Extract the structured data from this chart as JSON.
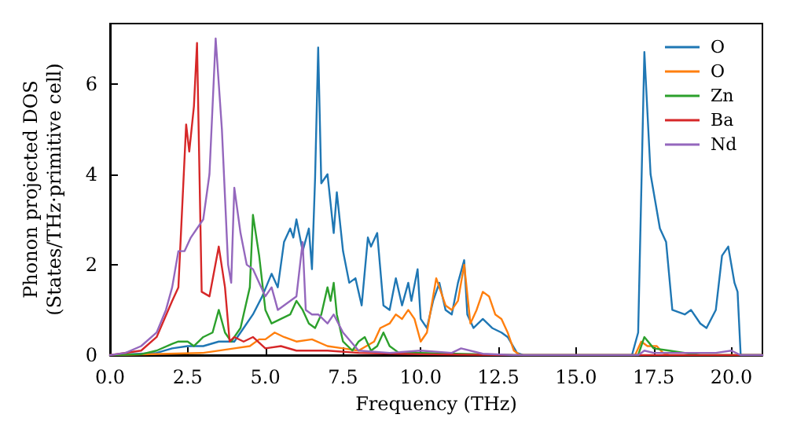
{
  "chart_data": {
    "type": "line",
    "xlabel": "Frequency (THz)",
    "ylabel": "Phonon projected DOS\n(States/THz·primitive cell)",
    "xlim": [
      0,
      21
    ],
    "ylim": [
      0,
      7.33
    ],
    "xticks": [
      {
        "value": 0,
        "label": "0.0"
      },
      {
        "value": 2.5,
        "label": "2.5"
      },
      {
        "value": 5,
        "label": "5.0"
      },
      {
        "value": 7.5,
        "label": "7.5"
      },
      {
        "value": 10,
        "label": "10.0"
      },
      {
        "value": 12.5,
        "label": "12.5"
      },
      {
        "value": 15,
        "label": "15.0"
      },
      {
        "value": 17.5,
        "label": "17.5"
      },
      {
        "value": 20,
        "label": "20.0"
      }
    ],
    "yticks": [
      0,
      2,
      4,
      6
    ],
    "grid": false,
    "legend": "top right",
    "marker": "none",
    "line_style": "solid",
    "series": [
      {
        "name": "O",
        "color": "#1f77b4",
        "x": [
          0,
          1.5,
          2.0,
          2.5,
          3.0,
          3.5,
          4.0,
          4.3,
          4.6,
          4.9,
          5.2,
          5.4,
          5.6,
          5.8,
          5.9,
          6.0,
          6.2,
          6.4,
          6.5,
          6.6,
          6.7,
          6.8,
          7.0,
          7.2,
          7.3,
          7.5,
          7.7,
          7.9,
          8.1,
          8.3,
          8.4,
          8.6,
          8.8,
          9.0,
          9.2,
          9.4,
          9.6,
          9.7,
          9.9,
          10.0,
          10.2,
          10.4,
          10.6,
          10.8,
          11.0,
          11.2,
          11.4,
          11.5,
          11.7,
          12.0,
          12.3,
          12.6,
          12.8,
          13.1,
          13.3,
          16.8,
          17.0,
          17.2,
          17.4,
          17.7,
          17.9,
          18.1,
          18.5,
          18.7,
          19.0,
          19.2,
          19.5,
          19.7,
          19.9,
          20.1,
          20.2,
          20.3,
          21
        ],
        "values": [
          0,
          0.05,
          0.15,
          0.2,
          0.2,
          0.3,
          0.3,
          0.6,
          0.9,
          1.3,
          1.8,
          1.5,
          2.5,
          2.8,
          2.6,
          3.0,
          2.3,
          2.8,
          1.9,
          3.9,
          6.8,
          3.8,
          4.0,
          2.7,
          3.6,
          2.3,
          1.6,
          1.7,
          1.1,
          2.6,
          2.4,
          2.7,
          1.1,
          1.0,
          1.7,
          1.1,
          1.6,
          1.2,
          1.9,
          0.8,
          0.6,
          1.2,
          1.6,
          1.0,
          0.9,
          1.6,
          2.1,
          0.9,
          0.6,
          0.8,
          0.6,
          0.5,
          0.4,
          0.05,
          0,
          0,
          0.5,
          6.7,
          4.0,
          2.8,
          2.5,
          1.0,
          0.9,
          1.0,
          0.7,
          0.6,
          1.0,
          2.2,
          2.4,
          1.6,
          1.4,
          0,
          0
        ]
      },
      {
        "name": "O",
        "color": "#ff7f0e",
        "x": [
          0,
          3,
          4,
          4.5,
          4.8,
          5.0,
          5.3,
          5.6,
          6.0,
          6.5,
          7.0,
          7.5,
          8.0,
          8.5,
          8.7,
          9.0,
          9.2,
          9.4,
          9.6,
          9.8,
          10.0,
          10.2,
          10.5,
          10.8,
          11.0,
          11.2,
          11.4,
          11.6,
          11.8,
          12.0,
          12.2,
          12.4,
          12.6,
          12.8,
          13.0,
          13.2,
          16.9,
          17.1,
          17.3,
          17.6,
          17.8,
          18,
          21
        ],
        "values": [
          0,
          0.05,
          0.15,
          0.2,
          0.35,
          0.35,
          0.5,
          0.4,
          0.3,
          0.35,
          0.2,
          0.15,
          0.1,
          0.3,
          0.6,
          0.7,
          0.9,
          0.8,
          1.0,
          0.8,
          0.3,
          0.5,
          1.7,
          1.1,
          1.0,
          1.2,
          2.0,
          0.7,
          1.0,
          1.4,
          1.3,
          0.9,
          0.8,
          0.5,
          0.1,
          0,
          0,
          0.3,
          0.2,
          0.2,
          0.05,
          0,
          0
        ]
      },
      {
        "name": "Zn",
        "color": "#2ca02c",
        "x": [
          0,
          1,
          1.5,
          2.0,
          2.2,
          2.5,
          2.7,
          3.0,
          3.3,
          3.5,
          3.7,
          3.9,
          4.2,
          4.5,
          4.6,
          4.8,
          5.0,
          5.2,
          5.5,
          5.8,
          6.0,
          6.2,
          6.4,
          6.6,
          6.8,
          7.0,
          7.1,
          7.2,
          7.3,
          7.5,
          7.8,
          8.0,
          8.2,
          8.4,
          8.6,
          8.8,
          9.0,
          9.3,
          10,
          12,
          13,
          17,
          17.2,
          17.5,
          18,
          18.5,
          19,
          21
        ],
        "values": [
          0,
          0.02,
          0.1,
          0.25,
          0.3,
          0.3,
          0.2,
          0.4,
          0.5,
          1.0,
          0.5,
          0.3,
          0.6,
          1.5,
          3.1,
          2.2,
          1.0,
          0.7,
          0.8,
          0.9,
          1.2,
          1.0,
          0.7,
          0.6,
          0.9,
          1.5,
          1.2,
          1.6,
          0.9,
          0.3,
          0.1,
          0.3,
          0.4,
          0.1,
          0.2,
          0.5,
          0.2,
          0.05,
          0.05,
          0.02,
          0,
          0,
          0.4,
          0.15,
          0.1,
          0.05,
          0,
          0
        ]
      },
      {
        "name": "Ba",
        "color": "#d62728",
        "x": [
          0,
          1.0,
          1.5,
          2.0,
          2.2,
          2.45,
          2.55,
          2.7,
          2.8,
          2.95,
          3.2,
          3.5,
          3.7,
          3.85,
          4.0,
          4.3,
          4.6,
          5.0,
          5.5,
          6.0,
          7,
          8,
          10,
          13,
          21
        ],
        "values": [
          0,
          0.1,
          0.4,
          1.2,
          1.5,
          5.1,
          4.5,
          5.5,
          6.9,
          1.4,
          1.3,
          2.4,
          1.5,
          0.3,
          0.4,
          0.3,
          0.4,
          0.15,
          0.2,
          0.1,
          0.1,
          0.05,
          0.02,
          0,
          0
        ]
      },
      {
        "name": "Nd",
        "color": "#9467bd",
        "x": [
          0,
          0.5,
          1.0,
          1.5,
          1.8,
          2.0,
          2.2,
          2.4,
          2.6,
          2.8,
          3.0,
          3.2,
          3.4,
          3.6,
          3.8,
          3.9,
          4.0,
          4.2,
          4.4,
          4.6,
          4.8,
          5.0,
          5.2,
          5.4,
          5.6,
          5.8,
          6.0,
          6.2,
          6.3,
          6.5,
          6.7,
          7.0,
          7.2,
          7.5,
          8,
          9,
          10,
          11,
          11.3,
          12,
          13,
          17,
          17.2,
          17.5,
          19.5,
          20,
          20.3,
          21
        ],
        "values": [
          0,
          0.05,
          0.2,
          0.5,
          1.0,
          1.5,
          2.3,
          2.3,
          2.6,
          2.8,
          3.0,
          4.0,
          7.0,
          5.0,
          2.0,
          1.6,
          3.7,
          2.7,
          2.0,
          1.9,
          1.6,
          1.3,
          1.5,
          1.0,
          1.1,
          1.2,
          1.3,
          2.5,
          1.0,
          0.9,
          0.9,
          0.7,
          0.9,
          0.5,
          0.1,
          0.05,
          0.1,
          0.05,
          0.15,
          0.03,
          0,
          0,
          0.1,
          0.05,
          0.05,
          0.1,
          0,
          0
        ]
      }
    ]
  }
}
